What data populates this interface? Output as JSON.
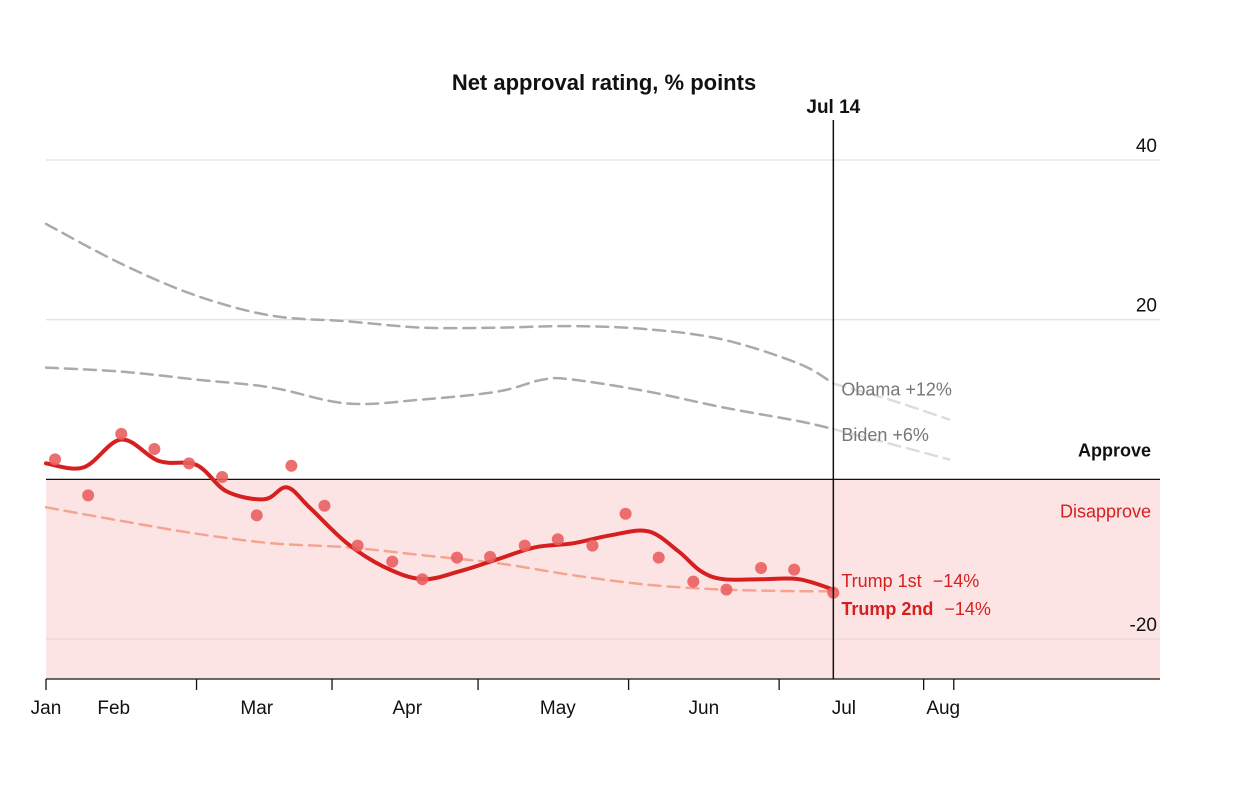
{
  "chart_data": {
    "type": "line",
    "title": "Net approval rating, % points",
    "xlabel": "",
    "ylabel": "",
    "ylim": [
      -25,
      40
    ],
    "yticks": [
      {
        "value": 40,
        "label": "40"
      },
      {
        "value": 20,
        "label": "20"
      },
      {
        "value": -20,
        "label": "-20"
      }
    ],
    "x_unit": "month",
    "xlim": [
      0,
      7.4
    ],
    "month_ticks": [
      {
        "label": "Jan",
        "x": 0,
        "boundary": 0
      },
      {
        "label": "Feb",
        "x": 0.45,
        "boundary": 1.0
      },
      {
        "label": "Mar",
        "x": 1.4,
        "boundary": 1.9
      },
      {
        "label": "Apr",
        "x": 2.4,
        "boundary": 2.87
      },
      {
        "label": "May",
        "x": 3.4,
        "boundary": 3.87
      },
      {
        "label": "Jun",
        "x": 4.37,
        "boundary": 4.87
      },
      {
        "label": "Jul",
        "x": 5.3,
        "boundary": 5.83
      },
      {
        "label": "Aug",
        "x": 5.96,
        "boundary": 6.03
      }
    ],
    "reference": {
      "label": "Jul 14",
      "x": 5.23
    },
    "regions": {
      "approve_label": "Approve",
      "disapprove_label": "Disapprove"
    },
    "colors": {
      "trump2": "#d61f1f",
      "trump2_points": "#ea5f5f",
      "trump1": "#f3a590",
      "historic": "#aaaaaa",
      "historic_label": "#777777",
      "disapprove_fill": "#fde4e4",
      "disapprove_text": "#d61f1f",
      "grid": "#d9d9d9"
    },
    "series": [
      {
        "name": "Obama",
        "end_label": "Obama +12%",
        "style": "dashed",
        "color": "#aaaaaa",
        "x": [
          0,
          0.5,
          1.0,
          1.5,
          2.0,
          2.5,
          3.0,
          3.5,
          4.0,
          4.5,
          5.0,
          5.23
        ],
        "y": [
          32,
          27,
          23,
          20.5,
          19.8,
          19,
          19,
          19.2,
          18.8,
          17.5,
          14.5,
          12
        ],
        "projection": {
          "x": [
            5.23,
            5.6,
            6.0
          ],
          "y": [
            12,
            10,
            7.5
          ]
        }
      },
      {
        "name": "Biden",
        "end_label": "Biden +6%",
        "style": "dashed",
        "color": "#aaaaaa",
        "x": [
          0,
          0.5,
          1.0,
          1.5,
          2.0,
          2.5,
          3.0,
          3.3,
          3.5,
          4.0,
          4.5,
          5.0,
          5.23
        ],
        "y": [
          14,
          13.5,
          12.5,
          11.5,
          9.5,
          10,
          11,
          12.5,
          12.5,
          11,
          9,
          7.3,
          6.3
        ],
        "projection": {
          "x": [
            5.23,
            5.6,
            6.0
          ],
          "y": [
            6.3,
            4.5,
            2.5
          ]
        }
      },
      {
        "name": "Trump 1st",
        "end_label_name": "Trump 1st",
        "end_label_value": "−14%",
        "style": "dashed",
        "color": "#f3a590",
        "x": [
          0,
          0.5,
          1.0,
          1.5,
          2.0,
          2.5,
          3.0,
          3.5,
          4.0,
          4.5,
          5.0,
          5.23
        ],
        "y": [
          -3.5,
          -5.2,
          -6.8,
          -8,
          -8.5,
          -9.5,
          -10.5,
          -12,
          -13.2,
          -13.8,
          -14,
          -14
        ]
      },
      {
        "name": "Trump 2nd",
        "end_label_name": "Trump 2nd",
        "end_label_value": "−14%",
        "style": "solid",
        "color": "#d61f1f",
        "x": [
          0,
          0.25,
          0.5,
          0.75,
          1.0,
          1.2,
          1.45,
          1.6,
          1.75,
          2.0,
          2.25,
          2.5,
          2.75,
          3.0,
          3.25,
          3.5,
          3.75,
          4.0,
          4.2,
          4.35,
          4.5,
          4.75,
          5.0,
          5.23
        ],
        "y": [
          2,
          1.5,
          5,
          2.3,
          1.8,
          -1.5,
          -2.5,
          -1,
          -3.5,
          -8,
          -11,
          -12.5,
          -11.5,
          -10,
          -8.5,
          -8,
          -7,
          -6.5,
          -9,
          -11.5,
          -12.5,
          -12.5,
          -12.5,
          -13.8
        ]
      }
    ],
    "points": {
      "name": "Trump 2nd polls",
      "x": [
        0.06,
        0.28,
        0.5,
        0.72,
        0.95,
        1.17,
        1.4,
        1.63,
        1.85,
        2.07,
        2.3,
        2.5,
        2.73,
        2.95,
        3.18,
        3.4,
        3.63,
        3.85,
        4.07,
        4.3,
        4.52,
        4.75,
        4.97,
        5.23
      ],
      "y": [
        2.5,
        -2,
        5.7,
        3.8,
        2,
        0.3,
        -4.5,
        1.7,
        -3.3,
        -8.3,
        -10.3,
        -12.5,
        -9.8,
        -9.7,
        -8.3,
        -7.5,
        -8.3,
        -4.3,
        -9.8,
        -12.8,
        -13.8,
        -11.1,
        -11.3,
        -14.2
      ]
    }
  }
}
